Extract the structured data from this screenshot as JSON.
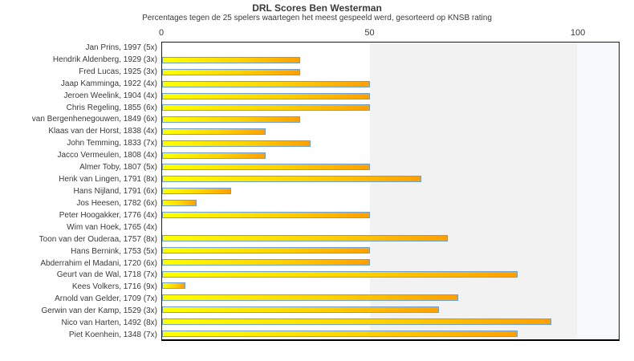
{
  "title": "DRL Scores Ben Westerman",
  "subtitle": "Percentages tegen de 25 spelers waartegen het meest gespeeld werd, gesorteerd op KNSB rating",
  "chart_data": {
    "type": "bar",
    "orientation": "horizontal",
    "title": "DRL Scores Ben Westerman",
    "subtitle": "Percentages tegen de 25 spelers waartegen het meest gespeeld werd, gesorteerd op KNSB rating",
    "categories": [
      "Jan Prins, 1997 (5x)",
      "Hendrik Aldenberg, 1929 (3x)",
      "Fred Lucas, 1925 (3x)",
      "Jaap Kamminga, 1922 (4x)",
      "Jeroen Weelink, 1904 (4x)",
      "Chris Regeling, 1855 (6x)",
      "van Bergenhenegouwen, 1849 (6x)",
      "Klaas van der Horst, 1838 (4x)",
      "John Temming, 1833 (7x)",
      "Jacco Vermeulen, 1808 (4x)",
      "Almer Toby, 1807 (5x)",
      "Henk van Lingen, 1791 (8x)",
      "Hans Nijland, 1791 (6x)",
      "Jos Heesen, 1782 (6x)",
      "Peter Hoogakker, 1776 (4x)",
      "Wim van Hoek, 1765 (4x)",
      "Toon van der Ouderaa, 1757 (8x)",
      "Hans Bernink, 1753 (5x)",
      "Abderrahim el Madani, 1720 (6x)",
      "Geurt van de Wal, 1718 (7x)",
      "Kees Volkers, 1716 (9x)",
      "Arnold van Gelder, 1709 (7x)",
      "Gerwin van der Kamp, 1529 (3x)",
      "Nico van Harten, 1492 (8x)",
      "Piet Koenhein, 1348 (7x)"
    ],
    "values": [
      0,
      33.3,
      33.3,
      50,
      50,
      50,
      33.3,
      25,
      35.7,
      25,
      50,
      62.5,
      16.7,
      8.3,
      50,
      0,
      68.8,
      50,
      50,
      85.7,
      5.6,
      71.4,
      66.7,
      93.8,
      85.7
    ],
    "xlabel": "",
    "ylabel": "",
    "xlim": [
      0,
      110
    ],
    "xticks": [
      {
        "value": 0,
        "label": "0"
      },
      {
        "value": 50,
        "label": "50"
      },
      {
        "value": 100,
        "label": "100"
      }
    ],
    "grid": false,
    "legend": false,
    "bands": [
      {
        "from": 50,
        "to": 100,
        "color": "#f2f2f2"
      },
      {
        "from": 100,
        "to": 110,
        "color": "#f7fafd"
      }
    ],
    "colors": {
      "bar_gradient_start": "#feff00",
      "bar_gradient_end": "#ffa000",
      "bar_border": "#6f9fd3",
      "plot_border": "#1c1c1c",
      "text": "#3a3a3a",
      "background": "#ffffff"
    }
  }
}
